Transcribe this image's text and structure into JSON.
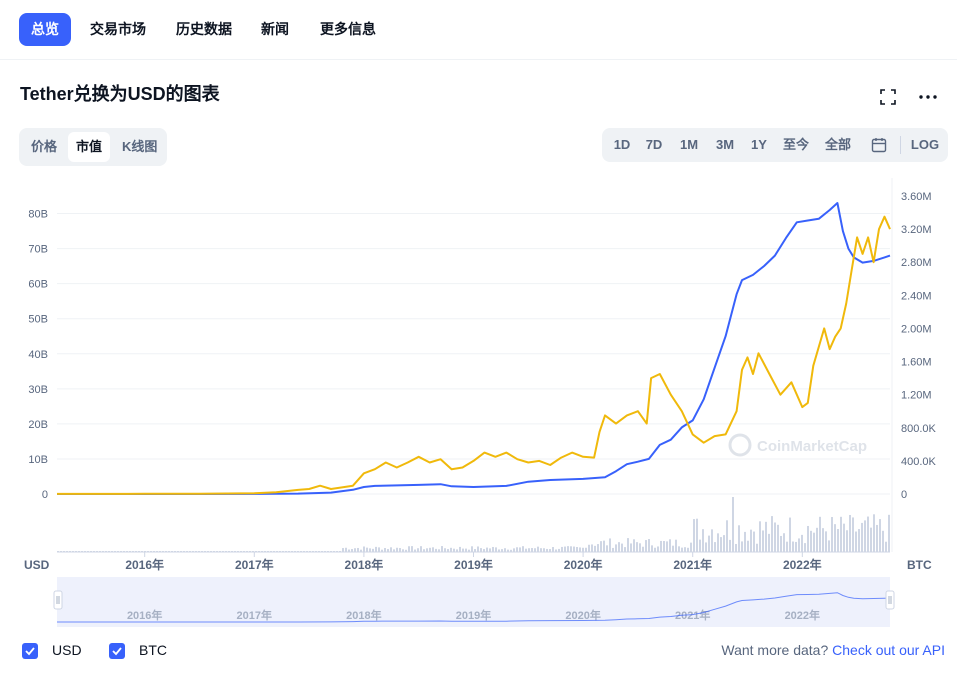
{
  "nav": {
    "tabs": [
      {
        "label": "总览",
        "active": true
      },
      {
        "label": "交易市场"
      },
      {
        "label": "历史数据"
      },
      {
        "label": "新闻"
      },
      {
        "label": "更多信息"
      }
    ]
  },
  "header": {
    "title": "Tether兑换为USD的图表",
    "fullscreen_icon": "fullscreen-icon",
    "more_icon": "more-dots-icon"
  },
  "metric_tabs": [
    {
      "label": "价格"
    },
    {
      "label": "市值",
      "active": true
    },
    {
      "label": "K线图"
    }
  ],
  "range_tabs": [
    "1D",
    "7D",
    "1M",
    "3M",
    "1Y",
    "至今",
    "全部"
  ],
  "calendar_icon": "calendar-icon",
  "log_label": "LOG",
  "watermark": "CoinMarketCap",
  "left_unit": "USD",
  "right_unit": "BTC",
  "legend": [
    {
      "label": "USD",
      "color": "#3861fb",
      "checked": true
    },
    {
      "label": "BTC",
      "color": "#f0b90b",
      "checked": true
    }
  ],
  "api": {
    "text": "Want more data?",
    "link": "Check out our API"
  },
  "chart_data": {
    "type": "line",
    "x_ticks": [
      "2016年",
      "2017年",
      "2018年",
      "2019年",
      "2020年",
      "2021年",
      "2022年"
    ],
    "navigator_ticks": [
      "2016年",
      "2017年",
      "2018年",
      "2019年",
      "2020年",
      "2021年",
      "2022年"
    ],
    "x_range": [
      2015.2,
      2022.8
    ],
    "y_left": {
      "ticks": [
        "0",
        "10B",
        "20B",
        "30B",
        "40B",
        "50B",
        "60B",
        "70B",
        "80B"
      ],
      "range": [
        0,
        85
      ]
    },
    "y_right": {
      "ticks": [
        "0",
        "400.0K",
        "800.0K",
        "1.20M",
        "1.60M",
        "2.00M",
        "2.40M",
        "2.80M",
        "3.20M",
        "3.60M"
      ],
      "range": [
        0,
        3.6
      ]
    },
    "grid": true,
    "series": [
      {
        "name": "USD",
        "color": "#3861fb",
        "axis": "left",
        "points": [
          [
            2015.2,
            0.01
          ],
          [
            2016.0,
            0.01
          ],
          [
            2016.5,
            0.01
          ],
          [
            2017.0,
            0.02
          ],
          [
            2017.4,
            0.1
          ],
          [
            2017.7,
            0.4
          ],
          [
            2017.9,
            1.2
          ],
          [
            2018.0,
            2.0
          ],
          [
            2018.1,
            2.3
          ],
          [
            2018.5,
            2.6
          ],
          [
            2018.7,
            2.8
          ],
          [
            2018.8,
            2.2
          ],
          [
            2019.0,
            2.0
          ],
          [
            2019.3,
            2.3
          ],
          [
            2019.5,
            3.5
          ],
          [
            2019.7,
            4.0
          ],
          [
            2020.0,
            4.3
          ],
          [
            2020.2,
            4.8
          ],
          [
            2020.3,
            6.5
          ],
          [
            2020.4,
            8.5
          ],
          [
            2020.5,
            9.2
          ],
          [
            2020.6,
            10.0
          ],
          [
            2020.7,
            14.0
          ],
          [
            2020.8,
            15.5
          ],
          [
            2020.9,
            19.0
          ],
          [
            2021.0,
            21.0
          ],
          [
            2021.1,
            27.0
          ],
          [
            2021.2,
            36.0
          ],
          [
            2021.3,
            45.0
          ],
          [
            2021.4,
            57.0
          ],
          [
            2021.45,
            61.0
          ],
          [
            2021.55,
            62.5
          ],
          [
            2021.65,
            65.0
          ],
          [
            2021.75,
            68.0
          ],
          [
            2021.85,
            73.0
          ],
          [
            2021.95,
            77.5
          ],
          [
            2022.05,
            78.0
          ],
          [
            2022.15,
            78.5
          ],
          [
            2022.25,
            81.0
          ],
          [
            2022.32,
            83.0
          ],
          [
            2022.37,
            75.0
          ],
          [
            2022.42,
            70.0
          ],
          [
            2022.47,
            67.5
          ],
          [
            2022.55,
            66.0
          ],
          [
            2022.65,
            66.5
          ],
          [
            2022.75,
            67.5
          ],
          [
            2022.8,
            68.0
          ]
        ]
      },
      {
        "name": "BTC",
        "color": "#f0b90b",
        "axis": "right",
        "points": [
          [
            2015.2,
            0.001
          ],
          [
            2016.0,
            0.002
          ],
          [
            2016.5,
            0.004
          ],
          [
            2017.0,
            0.008
          ],
          [
            2017.2,
            0.02
          ],
          [
            2017.4,
            0.05
          ],
          [
            2017.5,
            0.06
          ],
          [
            2017.6,
            0.1
          ],
          [
            2017.7,
            0.06
          ],
          [
            2017.8,
            0.08
          ],
          [
            2017.9,
            0.1
          ],
          [
            2018.0,
            0.25
          ],
          [
            2018.1,
            0.3
          ],
          [
            2018.2,
            0.38
          ],
          [
            2018.3,
            0.32
          ],
          [
            2018.4,
            0.38
          ],
          [
            2018.5,
            0.45
          ],
          [
            2018.6,
            0.38
          ],
          [
            2018.7,
            0.42
          ],
          [
            2018.8,
            0.3
          ],
          [
            2018.9,
            0.32
          ],
          [
            2019.0,
            0.4
          ],
          [
            2019.1,
            0.5
          ],
          [
            2019.2,
            0.45
          ],
          [
            2019.3,
            0.5
          ],
          [
            2019.4,
            0.42
          ],
          [
            2019.5,
            0.38
          ],
          [
            2019.6,
            0.4
          ],
          [
            2019.7,
            0.35
          ],
          [
            2019.8,
            0.44
          ],
          [
            2019.9,
            0.5
          ],
          [
            2020.0,
            0.45
          ],
          [
            2020.1,
            0.44
          ],
          [
            2020.15,
            0.75
          ],
          [
            2020.2,
            0.95
          ],
          [
            2020.3,
            0.85
          ],
          [
            2020.4,
            0.95
          ],
          [
            2020.5,
            1.0
          ],
          [
            2020.58,
            0.85
          ],
          [
            2020.62,
            1.4
          ],
          [
            2020.7,
            1.45
          ],
          [
            2020.8,
            1.2
          ],
          [
            2020.9,
            1.0
          ],
          [
            2021.0,
            0.72
          ],
          [
            2021.1,
            0.62
          ],
          [
            2021.2,
            0.7
          ],
          [
            2021.3,
            0.72
          ],
          [
            2021.4,
            1.0
          ],
          [
            2021.45,
            1.5
          ],
          [
            2021.5,
            1.65
          ],
          [
            2021.55,
            1.45
          ],
          [
            2021.6,
            1.7
          ],
          [
            2021.7,
            1.45
          ],
          [
            2021.8,
            1.2
          ],
          [
            2021.9,
            1.35
          ],
          [
            2022.0,
            1.05
          ],
          [
            2022.05,
            1.1
          ],
          [
            2022.1,
            1.55
          ],
          [
            2022.2,
            2.0
          ],
          [
            2022.25,
            1.75
          ],
          [
            2022.3,
            1.9
          ],
          [
            2022.35,
            2.0
          ],
          [
            2022.4,
            2.3
          ],
          [
            2022.45,
            2.7
          ],
          [
            2022.5,
            3.1
          ],
          [
            2022.55,
            2.9
          ],
          [
            2022.6,
            3.1
          ],
          [
            2022.65,
            2.8
          ],
          [
            2022.7,
            3.2
          ],
          [
            2022.75,
            3.35
          ],
          [
            2022.8,
            3.2
          ]
        ]
      }
    ]
  }
}
